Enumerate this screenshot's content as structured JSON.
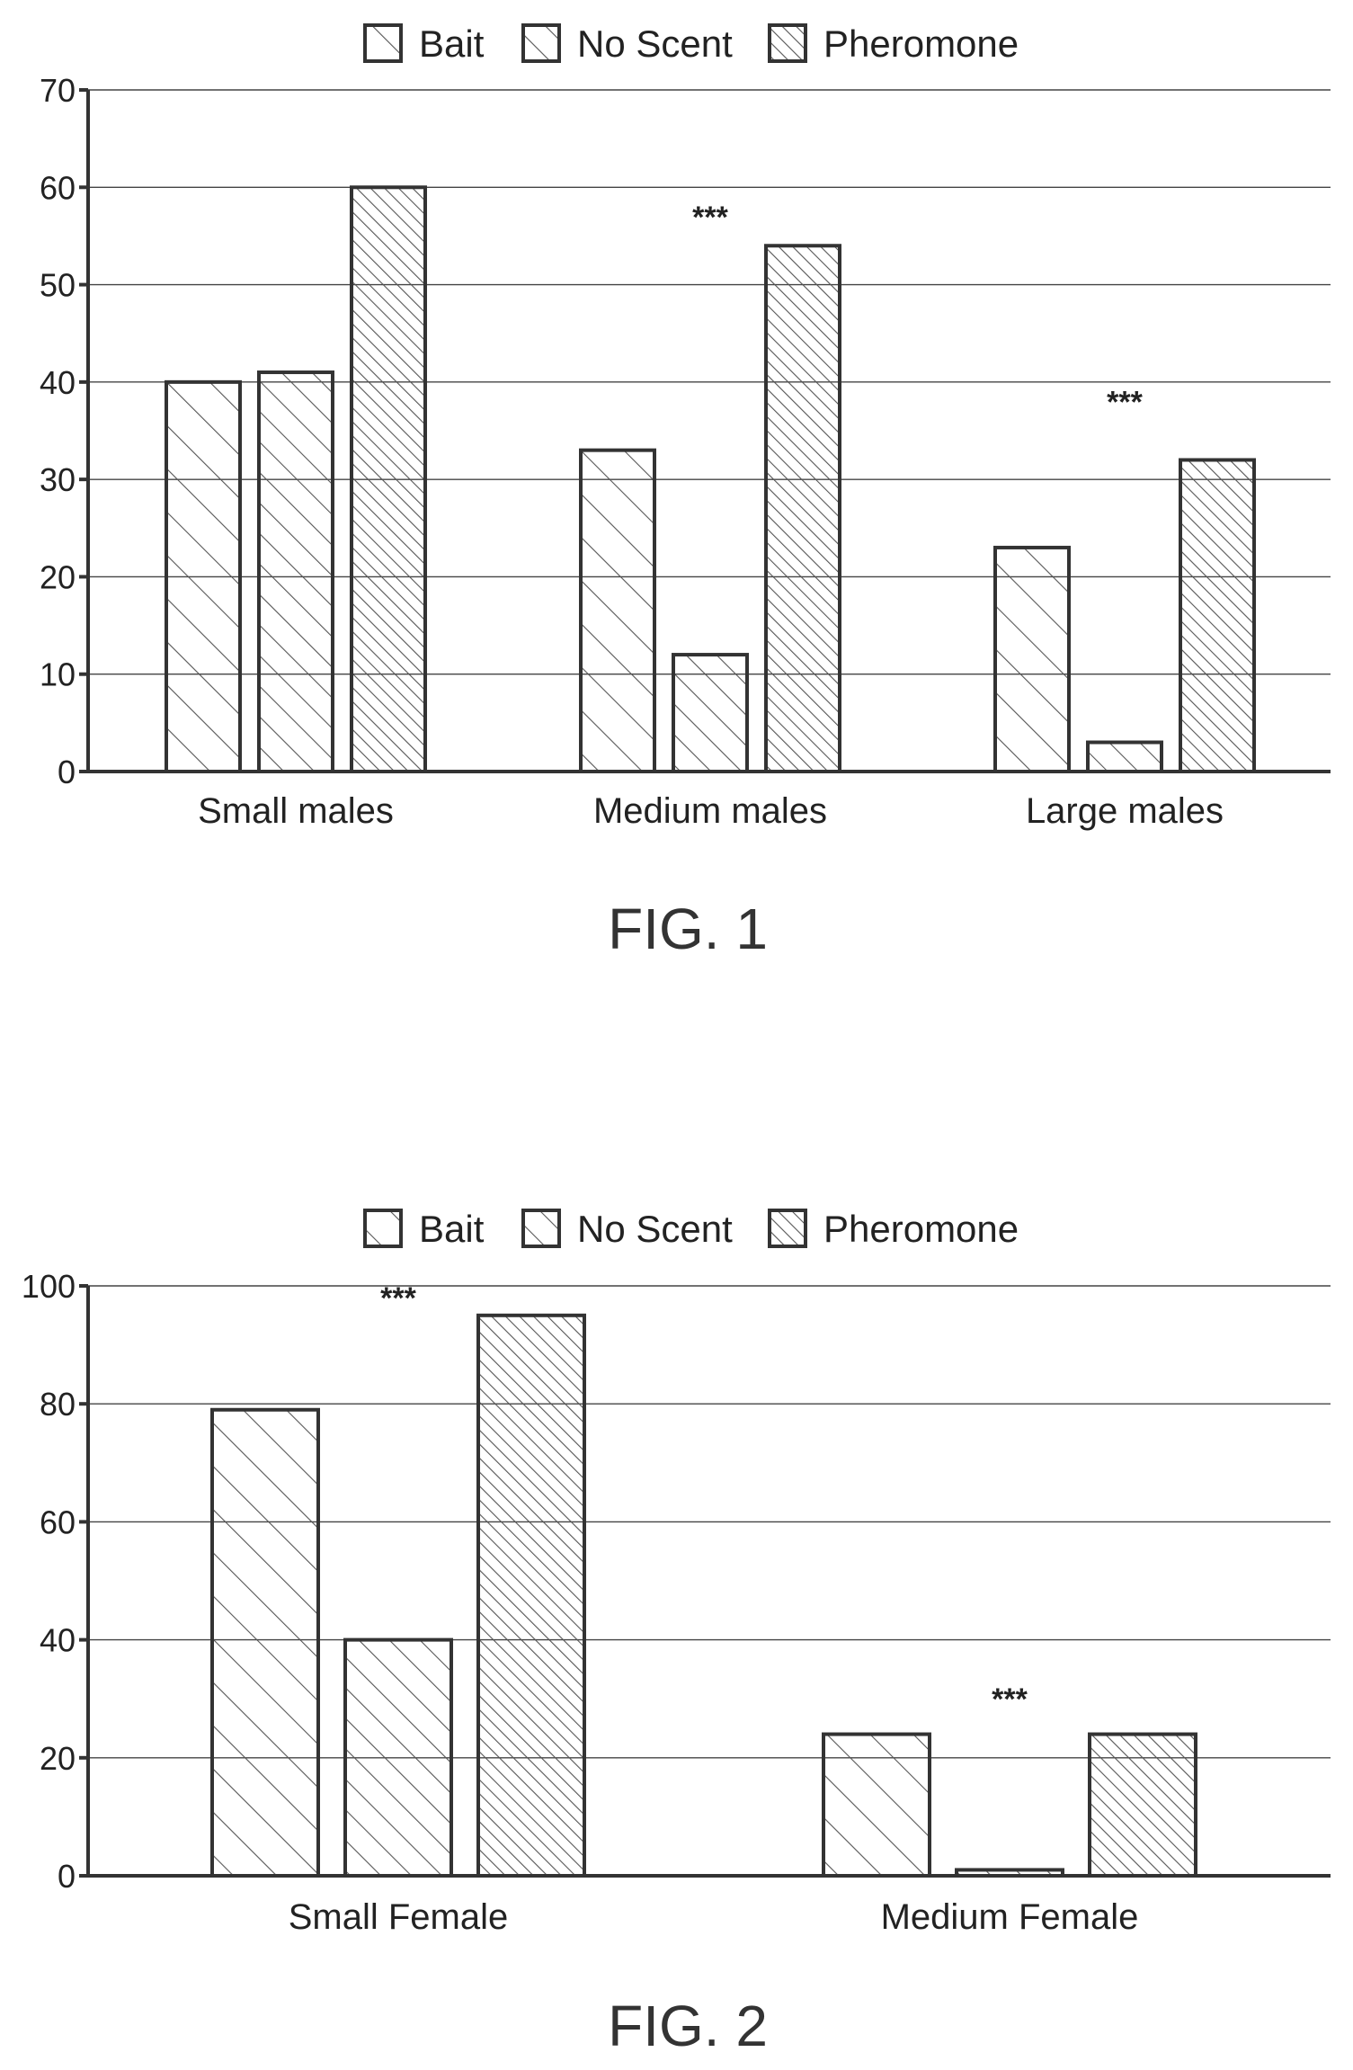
{
  "legend": {
    "items": [
      "Bait",
      "No Scent",
      "Pheromone"
    ]
  },
  "chart_data": [
    {
      "type": "bar",
      "categories": [
        "Small males",
        "Medium males",
        "Large males"
      ],
      "series": [
        {
          "name": "Bait",
          "values": [
            40,
            33,
            23
          ]
        },
        {
          "name": "No Scent",
          "values": [
            41,
            12,
            3
          ]
        },
        {
          "name": "Pheromone",
          "values": [
            60,
            54,
            32
          ]
        }
      ],
      "ylim": [
        0,
        70
      ],
      "yticks": [
        0,
        10,
        20,
        30,
        40,
        50,
        60,
        70
      ],
      "ytick_labels": [
        "0",
        "10",
        "20",
        "30",
        "40",
        "50",
        "60",
        "70"
      ],
      "annotations": [
        {
          "text": "***",
          "category": "Medium males",
          "value": 57
        },
        {
          "text": "***",
          "category": "Large males",
          "value": 38
        }
      ],
      "legend_position": "top-center",
      "grid": true,
      "caption": "FIG. 1"
    },
    {
      "type": "bar",
      "categories": [
        "Small Female",
        "Medium Female"
      ],
      "series": [
        {
          "name": "Bait",
          "values": [
            79,
            24
          ]
        },
        {
          "name": "No Scent",
          "values": [
            40,
            1
          ]
        },
        {
          "name": "Pheromone",
          "values": [
            95,
            24
          ]
        }
      ],
      "ylim": [
        0,
        100
      ],
      "yticks": [
        0,
        20,
        40,
        60,
        80,
        100
      ],
      "ytick_labels": [
        "0",
        "20",
        "40",
        "60",
        "80",
        "100"
      ],
      "annotations": [
        {
          "text": "***",
          "category": "Small Female",
          "value": 98
        },
        {
          "text": "***",
          "category": "Medium Female",
          "value": 30
        }
      ],
      "legend_position": "top-center",
      "grid": true,
      "caption": "FIG. 2"
    }
  ]
}
